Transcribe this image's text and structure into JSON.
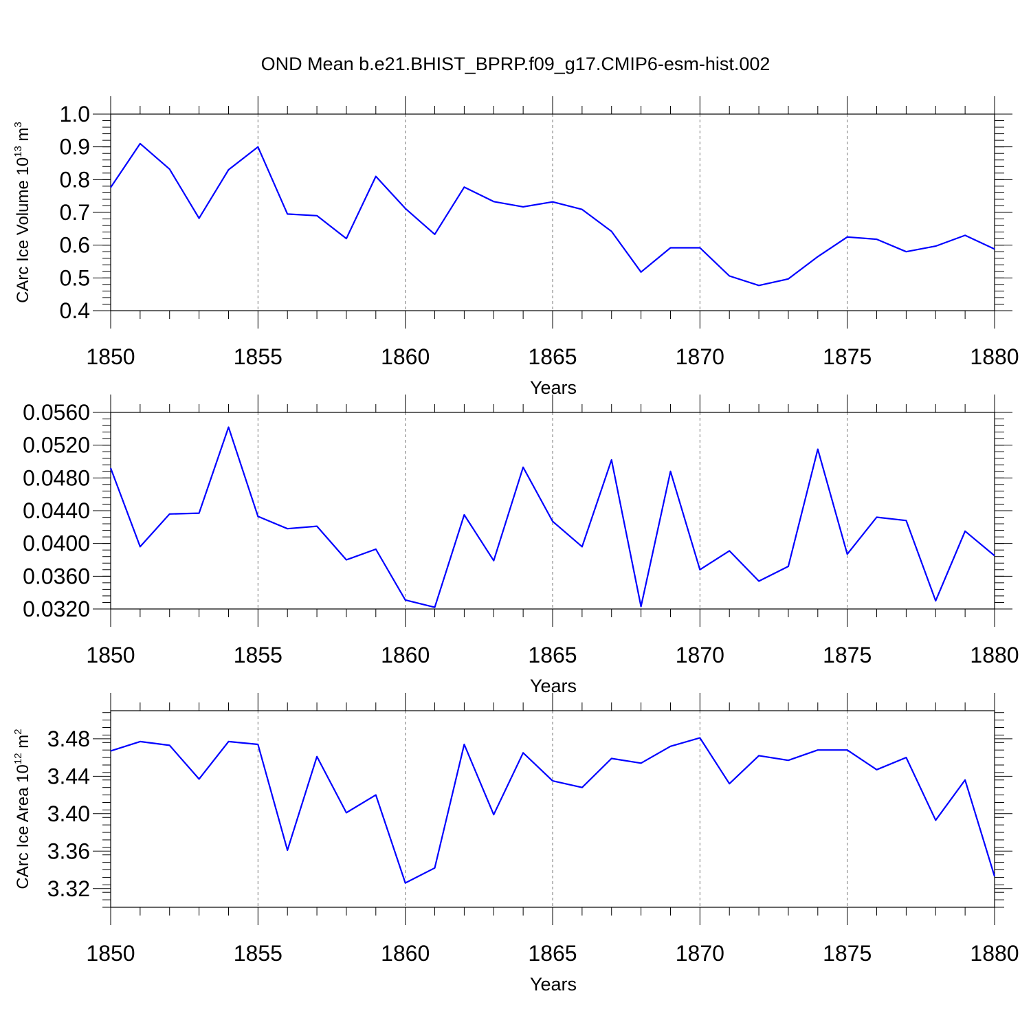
{
  "chart_data": {
    "type": "line",
    "title": "OND Mean b.e21.BHIST_BPRP.f09_g17.CMIP6-esm-hist.002",
    "x": [
      1850,
      1851,
      1852,
      1853,
      1854,
      1855,
      1856,
      1857,
      1858,
      1859,
      1860,
      1861,
      1862,
      1863,
      1864,
      1865,
      1866,
      1867,
      1868,
      1869,
      1870,
      1871,
      1872,
      1873,
      1874,
      1875,
      1876,
      1877,
      1878,
      1879,
      1880
    ],
    "xlim": [
      1850,
      1880
    ],
    "xticks": [
      1850,
      1855,
      1860,
      1865,
      1870,
      1875,
      1880
    ],
    "xtick_labels": [
      "1850",
      "1855",
      "1860",
      "1865",
      "1870",
      "1875",
      "1880"
    ],
    "xlabel": "Years",
    "panels": [
      {
        "ylabel": "CArc Ice Volume",
        "ylabel_unit": "10",
        "ylabel_exp": "13",
        "ylabel_unit2": "m",
        "ylabel_exp2": "3",
        "ylim": [
          0.4,
          1.0
        ],
        "yticks": [
          0.4,
          0.5,
          0.6,
          0.7,
          0.8,
          0.9,
          1.0
        ],
        "ytick_labels": [
          "0.4",
          "0.5",
          "0.6",
          "0.7",
          "0.8",
          "0.9",
          "1.0"
        ],
        "values": [
          0.776,
          0.91,
          0.832,
          0.682,
          0.83,
          0.9,
          0.695,
          0.69,
          0.62,
          0.81,
          0.712,
          0.633,
          0.777,
          0.733,
          0.717,
          0.732,
          0.709,
          0.642,
          0.518,
          0.592,
          0.592,
          0.506,
          0.477,
          0.497,
          0.565,
          0.625,
          0.618,
          0.58,
          0.597,
          0.63,
          0.588
        ]
      },
      {
        "ylabel": "",
        "ylim": [
          0.032,
          0.056
        ],
        "yticks": [
          0.032,
          0.036,
          0.04,
          0.044,
          0.048,
          0.052,
          0.056
        ],
        "ytick_labels": [
          "0.0320",
          "0.0360",
          "0.0400",
          "0.0440",
          "0.0480",
          "0.0520",
          "0.0560"
        ],
        "values": [
          0.0492,
          0.0396,
          0.0436,
          0.0437,
          0.0542,
          0.0433,
          0.0418,
          0.0421,
          0.038,
          0.0393,
          0.0331,
          0.0322,
          0.0435,
          0.0379,
          0.0493,
          0.0427,
          0.0396,
          0.0502,
          0.0323,
          0.0488,
          0.0368,
          0.0391,
          0.0354,
          0.0372,
          0.0515,
          0.0387,
          0.0432,
          0.0428,
          0.033,
          0.0415,
          0.0385
        ]
      },
      {
        "ylabel": "CArc Ice Area",
        "ylabel_unit": "10",
        "ylabel_exp": "12",
        "ylabel_unit2": "m",
        "ylabel_exp2": "2",
        "ylim": [
          3.3,
          3.51
        ],
        "yticks": [
          3.32,
          3.36,
          3.4,
          3.44,
          3.48
        ],
        "ytick_labels": [
          "3.32",
          "3.36",
          "3.40",
          "3.44",
          "3.48"
        ],
        "values": [
          3.467,
          3.477,
          3.473,
          3.437,
          3.477,
          3.474,
          3.361,
          3.461,
          3.401,
          3.42,
          3.326,
          3.342,
          3.474,
          3.399,
          3.465,
          3.435,
          3.428,
          3.459,
          3.454,
          3.472,
          3.481,
          3.432,
          3.462,
          3.457,
          3.468,
          3.468,
          3.447,
          3.46,
          3.393,
          3.436,
          3.333
        ]
      }
    ]
  }
}
